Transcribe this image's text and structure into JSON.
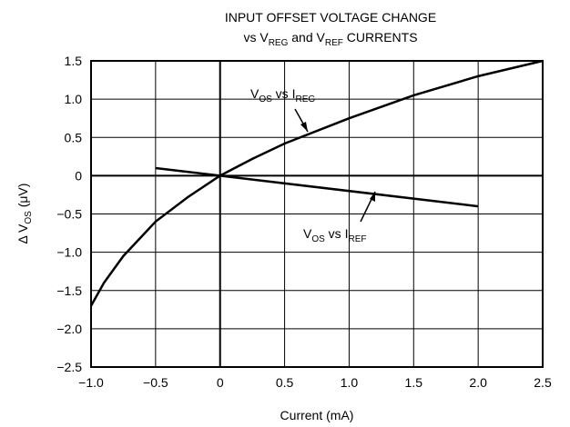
{
  "chart_data": {
    "type": "line",
    "title": [
      [
        "INPUT OFFSET VOLTAGE CHANGE"
      ],
      [
        "vs V",
        "REG",
        " and V",
        "REF",
        " CURRENTS"
      ]
    ],
    "xlabel": [
      "Current (mA)"
    ],
    "ylabel": [
      "Δ V",
      "OS",
      " (μV)"
    ],
    "xlim": [
      -1,
      2.5
    ],
    "ylim": [
      -2.5,
      1.5
    ],
    "xticks": [
      {
        "value": -1,
        "label": "−1.0"
      },
      {
        "value": -0.5,
        "label": "−0.5"
      },
      0,
      0.5,
      {
        "value": 1,
        "label": "1.0"
      },
      1.5,
      {
        "value": 2,
        "label": "2.0"
      },
      2.5
    ],
    "yticks": [
      {
        "value": -2.5,
        "label": "−2.5"
      },
      {
        "value": -2,
        "label": "−2.0"
      },
      {
        "value": -1.5,
        "label": "−1.5"
      },
      {
        "value": -1,
        "label": "−1.0"
      },
      {
        "value": -0.5,
        "label": "−0.5"
      },
      0,
      0.5,
      {
        "value": 1,
        "label": "1.0"
      },
      1.5
    ],
    "grid": true,
    "series": [
      {
        "name": [
          "V",
          "OS",
          " vs I",
          "REG"
        ],
        "color": "#000000",
        "x": [
          -1,
          -0.9,
          -0.75,
          -0.5,
          -0.25,
          0,
          0.25,
          0.5,
          1,
          1.5,
          2,
          2.5
        ],
        "values": [
          -1.7,
          -1.4,
          -1.05,
          -0.6,
          -0.28,
          0,
          0.22,
          0.42,
          0.75,
          1.05,
          1.3,
          1.5
        ]
      },
      {
        "name": [
          "V",
          "OS",
          " vs I",
          "REF"
        ],
        "color": "#000000",
        "x": [
          -0.5,
          0,
          2
        ],
        "values": [
          0.1,
          0,
          -0.4
        ]
      }
    ]
  }
}
